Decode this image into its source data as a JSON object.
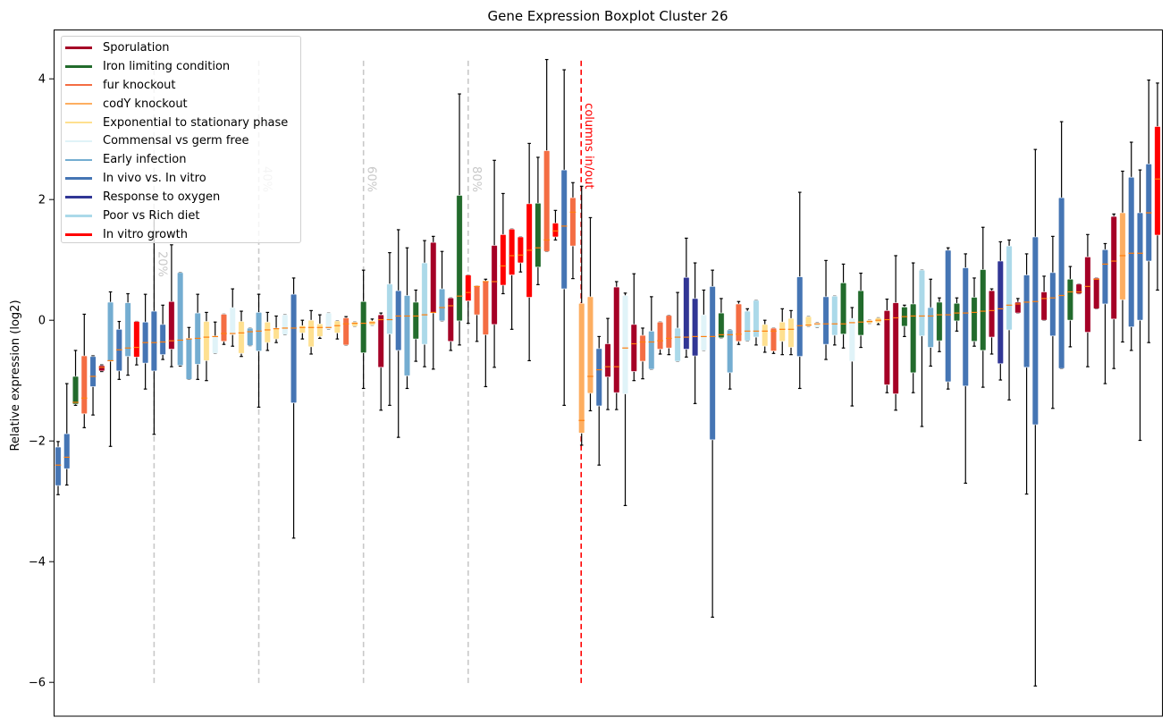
{
  "chart_data": {
    "type": "boxplot",
    "title": "Gene Expression Boxplot Cluster 26",
    "xlabel": "",
    "ylabel": "Relative expression (log2)",
    "ylim": [
      -6.56,
      4.81
    ],
    "yticks": [
      -6,
      -4,
      -2,
      0,
      2,
      4
    ],
    "ytick_labels": [
      "−6",
      "−4",
      "−2",
      "0",
      "2",
      "4"
    ],
    "grid": false,
    "legend_position": "top-left",
    "median_color": "#ff7f0e",
    "legend": [
      {
        "name": "Sporulation",
        "color": "#a50026"
      },
      {
        "name": "Iron limiting condition",
        "color": "#226b2c"
      },
      {
        "name": "fur knockout",
        "color": "#f46d43"
      },
      {
        "name": "codY knockout",
        "color": "#fdae61"
      },
      {
        "name": "Exponential to stationary phase",
        "color": "#fee090"
      },
      {
        "name": "Commensal vs germ free",
        "color": "#e0f3f8"
      },
      {
        "name": "Early infection",
        "color": "#74add1"
      },
      {
        "name": "In vivo vs. In vitro",
        "color": "#4575b4"
      },
      {
        "name": "Response to oxygen",
        "color": "#313695"
      },
      {
        "name": "Poor vs Rich diet",
        "color": "#abd9e9"
      },
      {
        "name": "In vitro growth",
        "color": "#ff0000"
      }
    ],
    "percentile_lines": [
      {
        "at_box": 11,
        "label": "20%",
        "color": "#c8c8c8"
      },
      {
        "at_box": 23,
        "label": "40%",
        "color": "#c8c8c8"
      },
      {
        "at_box": 35,
        "label": "60%",
        "color": "#c8c8c8"
      },
      {
        "at_box": 47,
        "label": "80%",
        "color": "#c8c8c8"
      }
    ],
    "split_line": {
      "at_box": 60,
      "label": "columns in/out",
      "color": "#ff0000"
    },
    "boxes": [
      {
        "group": 7,
        "lo": -2.89,
        "q1": -2.74,
        "med": -2.4,
        "q3": -2.1,
        "hi": -2.01
      },
      {
        "group": 7,
        "lo": -2.73,
        "q1": -2.46,
        "med": -2.27,
        "q3": -1.88,
        "hi": -1.05
      },
      {
        "group": 1,
        "lo": -1.41,
        "q1": -1.39,
        "med": -1.36,
        "q3": -0.93,
        "hi": -0.5
      },
      {
        "group": 2,
        "lo": -1.78,
        "q1": -1.55,
        "med": -1.29,
        "q3": -0.59,
        "hi": 0.1
      },
      {
        "group": 7,
        "lo": -1.57,
        "q1": -1.1,
        "med": -0.93,
        "q3": -0.6,
        "hi": -0.59
      },
      {
        "group": 0,
        "lo": -0.85,
        "q1": -0.84,
        "med": -0.78,
        "q3": -0.75,
        "hi": -0.74
      },
      {
        "group": 6,
        "lo": -2.09,
        "q1": -0.68,
        "med": -0.67,
        "q3": 0.3,
        "hi": 0.47
      },
      {
        "group": 7,
        "lo": -0.98,
        "q1": -0.84,
        "med": -0.49,
        "q3": -0.15,
        "hi": -0.02
      },
      {
        "group": 6,
        "lo": -0.91,
        "q1": -0.6,
        "med": -0.46,
        "q3": 0.29,
        "hi": 0.44
      },
      {
        "group": 10,
        "lo": -0.74,
        "q1": -0.61,
        "med": -0.45,
        "q3": -0.02,
        "hi": -0.02
      },
      {
        "group": 7,
        "lo": -1.14,
        "q1": -0.71,
        "med": -0.37,
        "q3": -0.03,
        "hi": 0.43
      },
      {
        "group": 7,
        "lo": -1.89,
        "q1": -0.84,
        "med": -0.37,
        "q3": 0.15,
        "hi": 1.75
      },
      {
        "group": 7,
        "lo": -0.65,
        "q1": -0.57,
        "med": -0.36,
        "q3": -0.07,
        "hi": 0.25
      },
      {
        "group": 0,
        "lo": -0.77,
        "q1": -0.48,
        "med": -0.34,
        "q3": 0.31,
        "hi": 1.25
      },
      {
        "group": 6,
        "lo": -0.76,
        "q1": -0.75,
        "med": -0.33,
        "q3": 0.79,
        "hi": 0.79
      },
      {
        "group": 6,
        "lo": -0.98,
        "q1": -0.98,
        "med": -0.31,
        "q3": -0.3,
        "hi": -0.12
      },
      {
        "group": 6,
        "lo": -0.98,
        "q1": -0.73,
        "med": -0.3,
        "q3": 0.12,
        "hi": 0.43
      },
      {
        "group": 4,
        "lo": -1.0,
        "q1": -0.67,
        "med": -0.28,
        "q3": -0.02,
        "hi": 0.13
      },
      {
        "group": 5,
        "lo": -0.55,
        "q1": -0.55,
        "med": -0.27,
        "q3": -0.26,
        "hi": -0.03
      },
      {
        "group": 2,
        "lo": -0.4,
        "q1": -0.35,
        "med": -0.22,
        "q3": 0.1,
        "hi": 0.1
      },
      {
        "group": 5,
        "lo": -0.43,
        "q1": -0.24,
        "med": -0.22,
        "q3": 0.21,
        "hi": 0.52
      },
      {
        "group": 4,
        "lo": -0.6,
        "q1": -0.55,
        "med": -0.21,
        "q3": -0.02,
        "hi": 0.15
      },
      {
        "group": 6,
        "lo": -0.42,
        "q1": -0.42,
        "med": -0.19,
        "q3": -0.13,
        "hi": -0.13
      },
      {
        "group": 6,
        "lo": -1.44,
        "q1": -0.51,
        "med": -0.18,
        "q3": 0.13,
        "hi": 0.43
      },
      {
        "group": 4,
        "lo": -0.5,
        "q1": -0.37,
        "med": -0.16,
        "q3": -0.03,
        "hi": 0.13
      },
      {
        "group": 4,
        "lo": -0.37,
        "q1": -0.31,
        "med": -0.14,
        "q3": -0.13,
        "hi": 0.07
      },
      {
        "group": 5,
        "lo": -0.24,
        "q1": -0.24,
        "med": -0.13,
        "q3": 0.09,
        "hi": 0.09
      },
      {
        "group": 7,
        "lo": -3.61,
        "q1": -1.37,
        "med": -0.13,
        "q3": 0.43,
        "hi": 0.7
      },
      {
        "group": 4,
        "lo": -0.31,
        "q1": -0.21,
        "med": -0.12,
        "q3": -0.09,
        "hi": 0.0
      },
      {
        "group": 4,
        "lo": -0.56,
        "q1": -0.44,
        "med": -0.12,
        "q3": 0.0,
        "hi": 0.16
      },
      {
        "group": 4,
        "lo": -0.3,
        "q1": -0.27,
        "med": -0.12,
        "q3": -0.06,
        "hi": 0.09
      },
      {
        "group": 5,
        "lo": -0.15,
        "q1": -0.15,
        "med": -0.12,
        "q3": 0.12,
        "hi": 0.12
      },
      {
        "group": 4,
        "lo": -0.31,
        "q1": -0.21,
        "med": -0.09,
        "q3": -0.01,
        "hi": -0.01
      },
      {
        "group": 2,
        "lo": -0.41,
        "q1": -0.41,
        "med": -0.06,
        "q3": 0.04,
        "hi": 0.06
      },
      {
        "group": 4,
        "lo": -0.1,
        "q1": -0.1,
        "med": -0.05,
        "q3": -0.03,
        "hi": -0.03
      },
      {
        "group": 1,
        "lo": -1.13,
        "q1": -0.54,
        "med": -0.05,
        "q3": 0.31,
        "hi": 0.83
      },
      {
        "group": 4,
        "lo": -0.08,
        "q1": -0.08,
        "med": -0.04,
        "q3": -0.01,
        "hi": 0.02
      },
      {
        "group": 0,
        "lo": -1.49,
        "q1": -0.78,
        "med": 0.01,
        "q3": 0.09,
        "hi": 0.12
      },
      {
        "group": 9,
        "lo": -1.41,
        "q1": -0.23,
        "med": 0.01,
        "q3": 0.6,
        "hi": 1.12
      },
      {
        "group": 7,
        "lo": -1.94,
        "q1": -0.5,
        "med": 0.07,
        "q3": 0.49,
        "hi": 1.5
      },
      {
        "group": 6,
        "lo": -1.13,
        "q1": -0.92,
        "med": 0.07,
        "q3": 0.41,
        "hi": 1.2
      },
      {
        "group": 1,
        "lo": -0.68,
        "q1": -0.31,
        "med": 0.07,
        "q3": 0.3,
        "hi": 0.5
      },
      {
        "group": 9,
        "lo": -0.77,
        "q1": -0.4,
        "med": 0.09,
        "q3": 0.95,
        "hi": 1.32
      },
      {
        "group": 0,
        "lo": -0.81,
        "q1": 0.12,
        "med": 0.13,
        "q3": 1.29,
        "hi": 1.39
      },
      {
        "group": 6,
        "lo": -0.01,
        "q1": -0.01,
        "med": 0.21,
        "q3": 0.52,
        "hi": 1.14
      },
      {
        "group": 0,
        "lo": -0.5,
        "q1": -0.35,
        "med": 0.24,
        "q3": 0.37,
        "hi": 0.37
      },
      {
        "group": 1,
        "lo": -0.41,
        "q1": -0.01,
        "med": 0.4,
        "q3": 2.07,
        "hi": 3.75
      },
      {
        "group": 10,
        "lo": -0.05,
        "q1": 0.32,
        "med": 0.46,
        "q3": 0.75,
        "hi": 0.75
      },
      {
        "group": 2,
        "lo": -0.35,
        "q1": 0.09,
        "med": 0.56,
        "q3": 0.56,
        "hi": 0.56
      },
      {
        "group": 2,
        "lo": -1.1,
        "q1": -0.24,
        "med": 0.64,
        "q3": 0.65,
        "hi": 0.68
      },
      {
        "group": 0,
        "lo": -0.78,
        "q1": -0.07,
        "med": 0.64,
        "q3": 1.24,
        "hi": 2.65
      },
      {
        "group": 10,
        "lo": 0.44,
        "q1": 0.58,
        "med": 0.9,
        "q3": 1.42,
        "hi": 2.1
      },
      {
        "group": 10,
        "lo": -0.15,
        "q1": 0.75,
        "med": 1.07,
        "q3": 1.51,
        "hi": 1.51
      },
      {
        "group": 10,
        "lo": 0.8,
        "q1": 0.95,
        "med": 1.08,
        "q3": 1.38,
        "hi": 1.38
      },
      {
        "group": 10,
        "lo": -0.67,
        "q1": 0.38,
        "med": 1.16,
        "q3": 1.93,
        "hi": 2.93
      },
      {
        "group": 1,
        "lo": 0.59,
        "q1": 0.88,
        "med": 1.2,
        "q3": 1.94,
        "hi": 2.7
      },
      {
        "group": 2,
        "lo": 1.14,
        "q1": 1.14,
        "med": 1.33,
        "q3": 2.81,
        "hi": 4.32
      },
      {
        "group": 10,
        "lo": 1.33,
        "q1": 1.38,
        "med": 1.48,
        "q3": 1.61,
        "hi": 1.82
      },
      {
        "group": 7,
        "lo": -1.41,
        "q1": 0.52,
        "med": 1.56,
        "q3": 2.49,
        "hi": 4.15
      },
      {
        "group": 2,
        "lo": 0.69,
        "q1": 1.23,
        "med": 1.79,
        "q3": 2.03,
        "hi": 2.28
      },
      {
        "group": 3,
        "lo": -2.07,
        "q1": -1.87,
        "med": -1.66,
        "q3": 0.28,
        "hi": 2.22
      },
      {
        "group": 3,
        "lo": -1.5,
        "q1": -1.21,
        "med": -0.93,
        "q3": 0.39,
        "hi": 1.7
      },
      {
        "group": 7,
        "lo": -2.4,
        "q1": -1.42,
        "med": -0.82,
        "q3": -0.47,
        "hi": -0.27
      },
      {
        "group": 0,
        "lo": -1.48,
        "q1": -0.94,
        "med": -0.77,
        "q3": -0.39,
        "hi": 0.03
      },
      {
        "group": 0,
        "lo": -1.48,
        "q1": -1.2,
        "med": -0.77,
        "q3": 0.55,
        "hi": 0.64
      },
      {
        "group": 5,
        "lo": -3.07,
        "q1": -1.22,
        "med": -0.46,
        "q3": 0.41,
        "hi": 0.45
      },
      {
        "group": 0,
        "lo": -1.0,
        "q1": -0.85,
        "med": -0.39,
        "q3": -0.07,
        "hi": 0.77
      },
      {
        "group": 2,
        "lo": -0.97,
        "q1": -0.68,
        "med": -0.36,
        "q3": -0.25,
        "hi": -0.13
      },
      {
        "group": 6,
        "lo": -0.81,
        "q1": -0.81,
        "med": -0.36,
        "q3": -0.18,
        "hi": 0.39
      },
      {
        "group": 2,
        "lo": -0.56,
        "q1": -0.48,
        "med": -0.34,
        "q3": -0.03,
        "hi": -0.03
      },
      {
        "group": 2,
        "lo": -0.57,
        "q1": -0.46,
        "med": -0.3,
        "q3": 0.08,
        "hi": 0.08
      },
      {
        "group": 9,
        "lo": -0.68,
        "q1": -0.68,
        "med": -0.28,
        "q3": -0.13,
        "hi": 0.46
      },
      {
        "group": 8,
        "lo": -0.61,
        "q1": -0.48,
        "med": -0.28,
        "q3": 0.71,
        "hi": 1.36
      },
      {
        "group": 8,
        "lo": -1.38,
        "q1": -0.59,
        "med": -0.27,
        "q3": 0.36,
        "hi": 0.95
      },
      {
        "group": 5,
        "lo": -0.5,
        "q1": -0.5,
        "med": -0.27,
        "q3": 0.09,
        "hi": 0.5
      },
      {
        "group": 7,
        "lo": -4.92,
        "q1": -1.98,
        "med": -0.27,
        "q3": 0.56,
        "hi": 0.83
      },
      {
        "group": 1,
        "lo": -0.29,
        "q1": -0.29,
        "med": -0.24,
        "q3": 0.12,
        "hi": 0.36
      },
      {
        "group": 6,
        "lo": -1.14,
        "q1": -0.87,
        "med": -0.24,
        "q3": -0.16,
        "hi": -0.16
      },
      {
        "group": 2,
        "lo": -0.4,
        "q1": -0.35,
        "med": -0.23,
        "q3": 0.27,
        "hi": 0.31
      },
      {
        "group": 9,
        "lo": -0.34,
        "q1": -0.34,
        "med": -0.18,
        "q3": 0.15,
        "hi": 0.19
      },
      {
        "group": 9,
        "lo": -0.41,
        "q1": -0.28,
        "med": -0.18,
        "q3": 0.33,
        "hi": 0.33
      },
      {
        "group": 4,
        "lo": -0.53,
        "q1": -0.43,
        "med": -0.18,
        "q3": -0.07,
        "hi": 0.0
      },
      {
        "group": 2,
        "lo": -0.55,
        "q1": -0.51,
        "med": -0.18,
        "q3": -0.13,
        "hi": -0.13
      },
      {
        "group": 4,
        "lo": -0.57,
        "q1": -0.35,
        "med": -0.15,
        "q3": -0.03,
        "hi": 0.19
      },
      {
        "group": 4,
        "lo": -0.57,
        "q1": -0.45,
        "med": -0.15,
        "q3": 0.03,
        "hi": 0.16
      },
      {
        "group": 7,
        "lo": -1.13,
        "q1": -0.6,
        "med": -0.09,
        "q3": 0.72,
        "hi": 2.12
      },
      {
        "group": 4,
        "lo": -0.1,
        "q1": -0.1,
        "med": -0.08,
        "q3": 0.06,
        "hi": 0.06
      },
      {
        "group": 5,
        "lo": -0.12,
        "q1": -0.12,
        "med": -0.06,
        "q3": -0.04,
        "hi": -0.04
      },
      {
        "group": 7,
        "lo": -0.65,
        "q1": -0.4,
        "med": -0.06,
        "q3": 0.39,
        "hi": 0.99
      },
      {
        "group": 9,
        "lo": -0.41,
        "q1": -0.25,
        "med": -0.06,
        "q3": 0.4,
        "hi": 0.4
      },
      {
        "group": 1,
        "lo": -0.46,
        "q1": -0.23,
        "med": -0.06,
        "q3": 0.62,
        "hi": 0.93
      },
      {
        "group": 5,
        "lo": -1.42,
        "q1": -0.68,
        "med": -0.04,
        "q3": 0.03,
        "hi": 0.21
      },
      {
        "group": 1,
        "lo": -0.45,
        "q1": -0.25,
        "med": -0.03,
        "q3": 0.49,
        "hi": 0.78
      },
      {
        "group": 4,
        "lo": -0.05,
        "q1": -0.05,
        "med": -0.02,
        "q3": 0.0,
        "hi": 0.0
      },
      {
        "group": 4,
        "lo": -0.07,
        "q1": -0.04,
        "med": 0.0,
        "q3": 0.04,
        "hi": 0.04
      },
      {
        "group": 0,
        "lo": -1.2,
        "q1": -1.07,
        "med": 0.01,
        "q3": 0.16,
        "hi": 0.35
      },
      {
        "group": 0,
        "lo": -1.49,
        "q1": -1.22,
        "med": 0.04,
        "q3": 0.29,
        "hi": 1.07
      },
      {
        "group": 1,
        "lo": -0.27,
        "q1": -0.1,
        "med": 0.06,
        "q3": 0.22,
        "hi": 0.25
      },
      {
        "group": 1,
        "lo": -1.2,
        "q1": -0.87,
        "med": 0.07,
        "q3": 0.27,
        "hi": 0.95
      },
      {
        "group": 9,
        "lo": -1.76,
        "q1": -0.26,
        "med": 0.07,
        "q3": 0.83,
        "hi": 0.83
      },
      {
        "group": 6,
        "lo": -0.76,
        "q1": -0.45,
        "med": 0.07,
        "q3": 0.21,
        "hi": 0.68
      },
      {
        "group": 1,
        "lo": -0.52,
        "q1": -0.34,
        "med": 0.09,
        "q3": 0.3,
        "hi": 0.37
      },
      {
        "group": 7,
        "lo": -1.14,
        "q1": -1.02,
        "med": 0.09,
        "q3": 1.16,
        "hi": 1.2
      },
      {
        "group": 1,
        "lo": -0.18,
        "q1": -0.01,
        "med": 0.12,
        "q3": 0.28,
        "hi": 0.37
      },
      {
        "group": 7,
        "lo": -2.7,
        "q1": -1.09,
        "med": 0.12,
        "q3": 0.87,
        "hi": 1.1
      },
      {
        "group": 1,
        "lo": -0.43,
        "q1": -0.35,
        "med": 0.13,
        "q3": 0.38,
        "hi": 0.7
      },
      {
        "group": 1,
        "lo": -1.11,
        "q1": -0.5,
        "med": 0.15,
        "q3": 0.84,
        "hi": 1.54
      },
      {
        "group": 0,
        "lo": -0.56,
        "q1": -0.28,
        "med": 0.16,
        "q3": 0.49,
        "hi": 0.52
      },
      {
        "group": 8,
        "lo": -0.99,
        "q1": -0.72,
        "med": 0.19,
        "q3": 0.98,
        "hi": 1.3
      },
      {
        "group": 9,
        "lo": -1.32,
        "q1": -0.16,
        "med": 0.25,
        "q3": 1.23,
        "hi": 1.33
      },
      {
        "group": 0,
        "lo": 0.12,
        "q1": 0.12,
        "med": 0.27,
        "q3": 0.3,
        "hi": 0.36
      },
      {
        "group": 7,
        "lo": -2.88,
        "q1": -0.78,
        "med": 0.3,
        "q3": 0.75,
        "hi": 1.1
      },
      {
        "group": 7,
        "lo": -6.06,
        "q1": -1.73,
        "med": 0.31,
        "q3": 1.38,
        "hi": 2.83
      },
      {
        "group": 0,
        "lo": 0.0,
        "q1": 0.0,
        "med": 0.36,
        "q3": 0.47,
        "hi": 0.73
      },
      {
        "group": 7,
        "lo": -1.46,
        "q1": -0.26,
        "med": 0.37,
        "q3": 0.79,
        "hi": 1.39
      },
      {
        "group": 7,
        "lo": -0.8,
        "q1": -0.8,
        "med": 0.41,
        "q3": 2.03,
        "hi": 3.29
      },
      {
        "group": 1,
        "lo": -0.44,
        "q1": 0.0,
        "med": 0.47,
        "q3": 0.68,
        "hi": 0.89
      },
      {
        "group": 0,
        "lo": 0.44,
        "q1": 0.44,
        "med": 0.47,
        "q3": 0.6,
        "hi": 0.6
      },
      {
        "group": 0,
        "lo": -0.77,
        "q1": -0.2,
        "med": 0.56,
        "q3": 1.05,
        "hi": 1.42
      },
      {
        "group": 0,
        "lo": 0.19,
        "q1": 0.19,
        "med": 0.68,
        "q3": 0.7,
        "hi": 0.7
      },
      {
        "group": 7,
        "lo": -1.05,
        "q1": 0.27,
        "med": 0.93,
        "q3": 1.17,
        "hi": 1.27
      },
      {
        "group": 0,
        "lo": -0.8,
        "q1": 0.02,
        "med": 0.98,
        "q3": 1.72,
        "hi": 1.76
      },
      {
        "group": 3,
        "lo": -0.36,
        "q1": 0.34,
        "med": 1.07,
        "q3": 1.78,
        "hi": 2.47
      },
      {
        "group": 7,
        "lo": -0.5,
        "q1": -0.11,
        "med": 1.11,
        "q3": 2.37,
        "hi": 2.95
      },
      {
        "group": 7,
        "lo": -1.99,
        "q1": 0.0,
        "med": 1.11,
        "q3": 1.78,
        "hi": 2.49
      },
      {
        "group": 7,
        "lo": -0.37,
        "q1": 0.98,
        "med": 1.78,
        "q3": 2.59,
        "hi": 3.98
      },
      {
        "group": 10,
        "lo": 0.5,
        "q1": 1.41,
        "med": 2.34,
        "q3": 3.21,
        "hi": 3.93
      }
    ]
  }
}
